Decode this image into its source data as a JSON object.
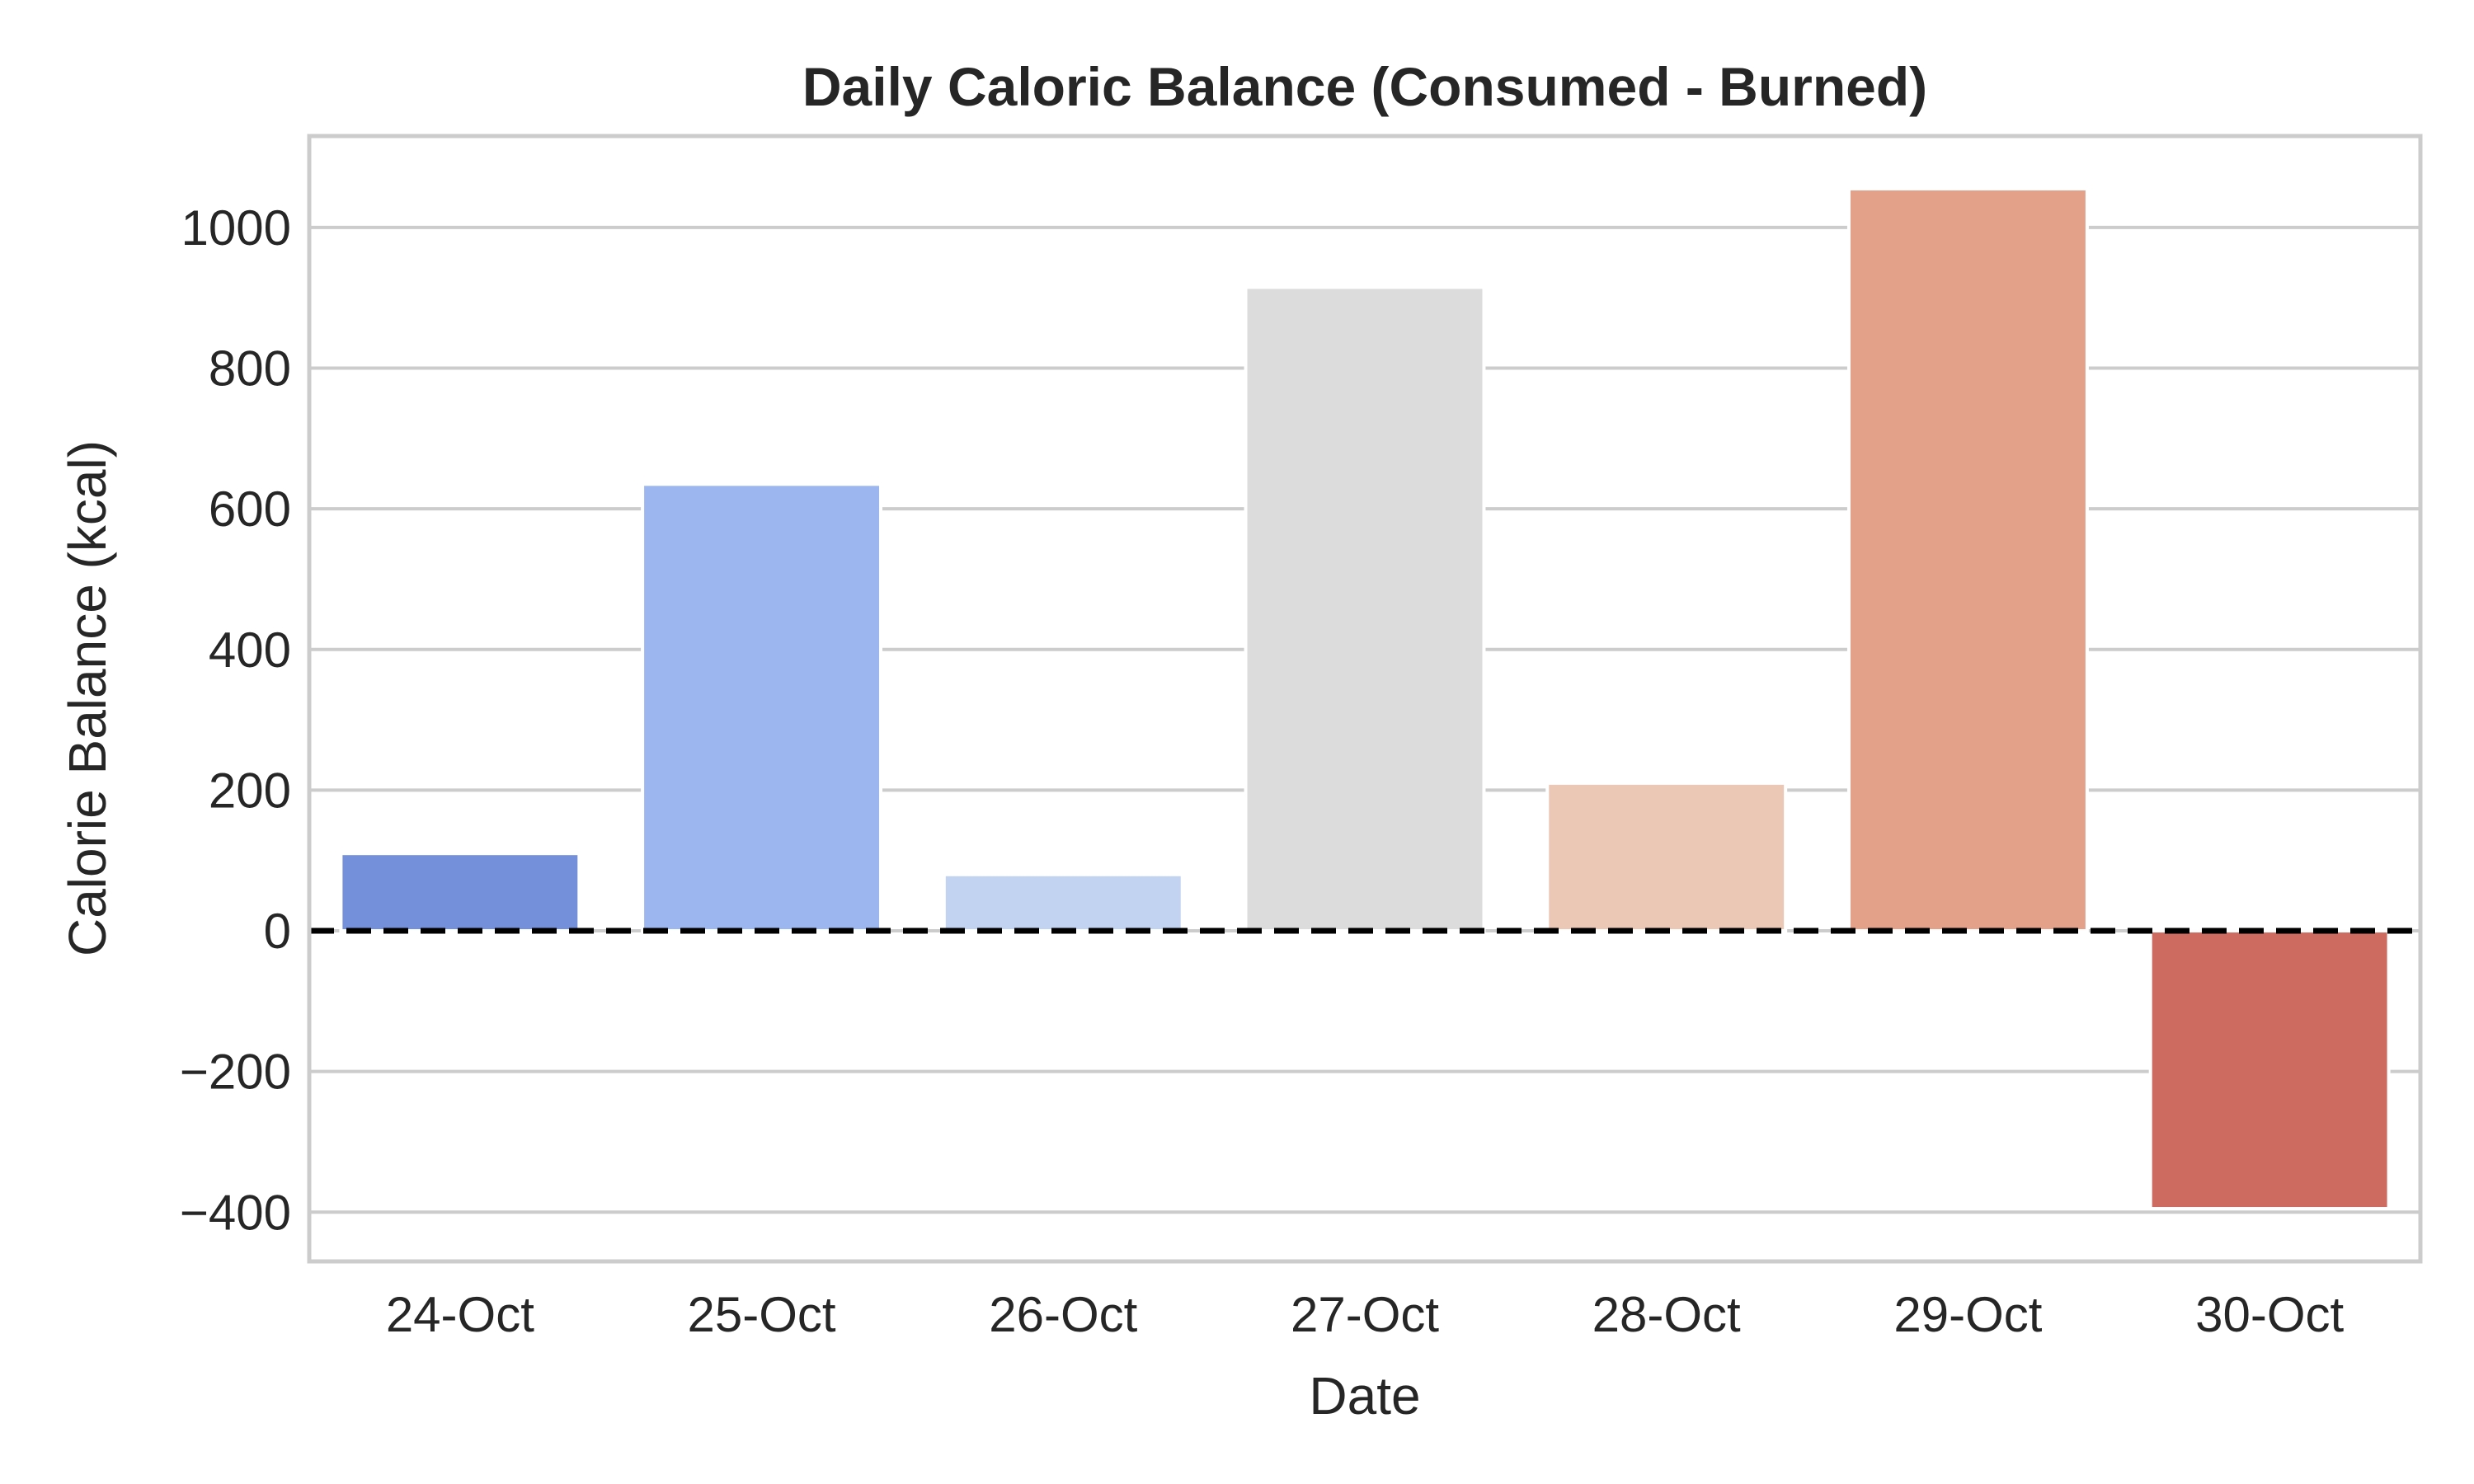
{
  "chart_data": {
    "type": "bar",
    "title": "Daily Caloric Balance (Consumed - Burned)",
    "xlabel": "Date",
    "ylabel": "Calorie Balance (kcal)",
    "categories": [
      "24-Oct",
      "25-Oct",
      "26-Oct",
      "27-Oct",
      "28-Oct",
      "29-Oct",
      "30-Oct"
    ],
    "values": [
      110,
      635,
      80,
      915,
      210,
      1055,
      -395
    ],
    "colors": [
      "#7590db",
      "#9cb6f0",
      "#c1d3f1",
      "#dcdcdc",
      "#ebc7b5",
      "#e4a18a",
      "#cd6b60"
    ],
    "ylim": [
      -470,
      1130
    ],
    "yticks": [
      -400,
      -200,
      0,
      200,
      400,
      600,
      800,
      1000
    ],
    "ytick_labels": [
      "−400",
      "−200",
      "0",
      "200",
      "400",
      "600",
      "800",
      "1000"
    ],
    "grid": true,
    "reference_line": {
      "y": 0,
      "style": "dashed",
      "color": "#000000"
    }
  }
}
